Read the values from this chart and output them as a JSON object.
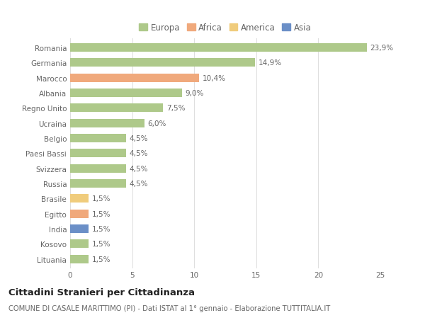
{
  "countries": [
    "Romania",
    "Germania",
    "Marocco",
    "Albania",
    "Regno Unito",
    "Ucraina",
    "Belgio",
    "Paesi Bassi",
    "Svizzera",
    "Russia",
    "Brasile",
    "Egitto",
    "India",
    "Kosovo",
    "Lituania"
  ],
  "values": [
    23.9,
    14.9,
    10.4,
    9.0,
    7.5,
    6.0,
    4.5,
    4.5,
    4.5,
    4.5,
    1.5,
    1.5,
    1.5,
    1.5,
    1.5
  ],
  "labels": [
    "23,9%",
    "14,9%",
    "10,4%",
    "9,0%",
    "7,5%",
    "6,0%",
    "4,5%",
    "4,5%",
    "4,5%",
    "4,5%",
    "1,5%",
    "1,5%",
    "1,5%",
    "1,5%",
    "1,5%"
  ],
  "categories": [
    "Europa",
    "Africa",
    "America",
    "Asia"
  ],
  "continent": [
    "Europa",
    "Europa",
    "Africa",
    "Europa",
    "Europa",
    "Europa",
    "Europa",
    "Europa",
    "Europa",
    "Europa",
    "America",
    "Africa",
    "Asia",
    "Europa",
    "Europa"
  ],
  "colors": {
    "Europa": "#aec98a",
    "Africa": "#f0a97c",
    "America": "#f0cc7c",
    "Asia": "#6b8fc7"
  },
  "xlim": [
    0,
    25
  ],
  "xticks": [
    0,
    5,
    10,
    15,
    20,
    25
  ],
  "title": "Cittadini Stranieri per Cittadinanza",
  "subtitle": "COMUNE DI CASALE MARITTIMO (PI) - Dati ISTAT al 1° gennaio - Elaborazione TUTTITALIA.IT",
  "bg_color": "#ffffff",
  "bar_height": 0.55,
  "grid_color": "#dddddd",
  "text_color": "#666666",
  "label_fontsize": 7.5,
  "tick_fontsize": 7.5,
  "title_fontsize": 9.5,
  "subtitle_fontsize": 7.2
}
